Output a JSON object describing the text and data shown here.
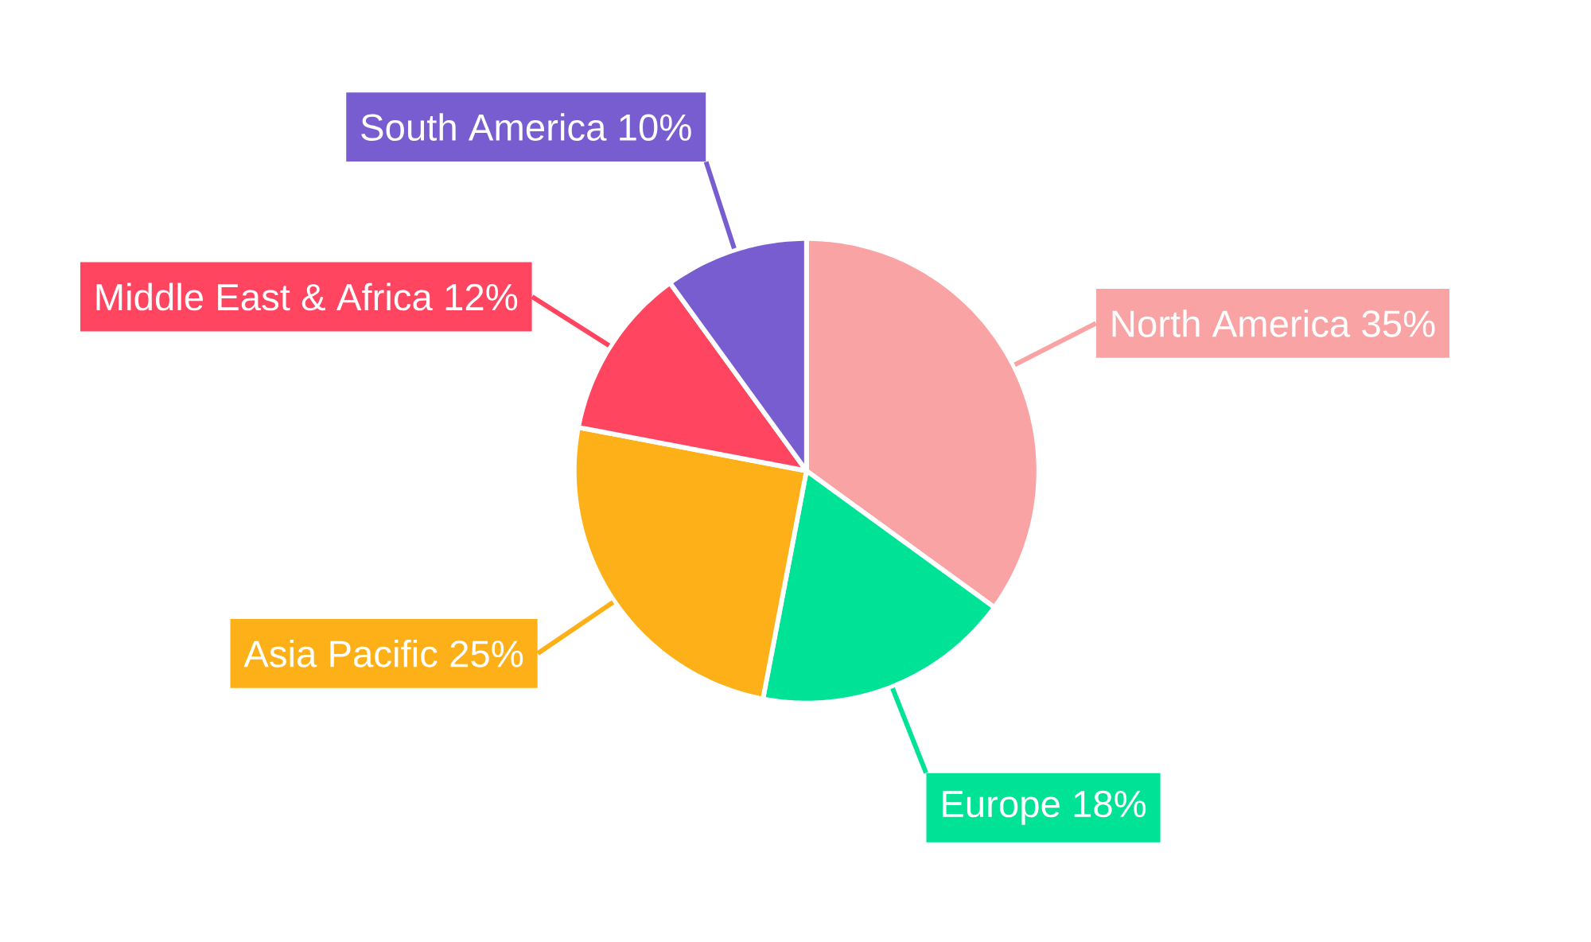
{
  "chart_data": {
    "type": "pie",
    "categories": [
      "North America",
      "Europe",
      "Asia Pacific",
      "Middle East & Africa",
      "South America"
    ],
    "values": [
      35,
      18,
      25,
      12,
      10
    ],
    "value_labels": [
      "35%",
      "18%",
      "25%",
      "12%",
      "10%"
    ],
    "colors": [
      "#f9a3a4",
      "#00e396",
      "#feb019",
      "#ff4560",
      "#775dd0"
    ]
  }
}
